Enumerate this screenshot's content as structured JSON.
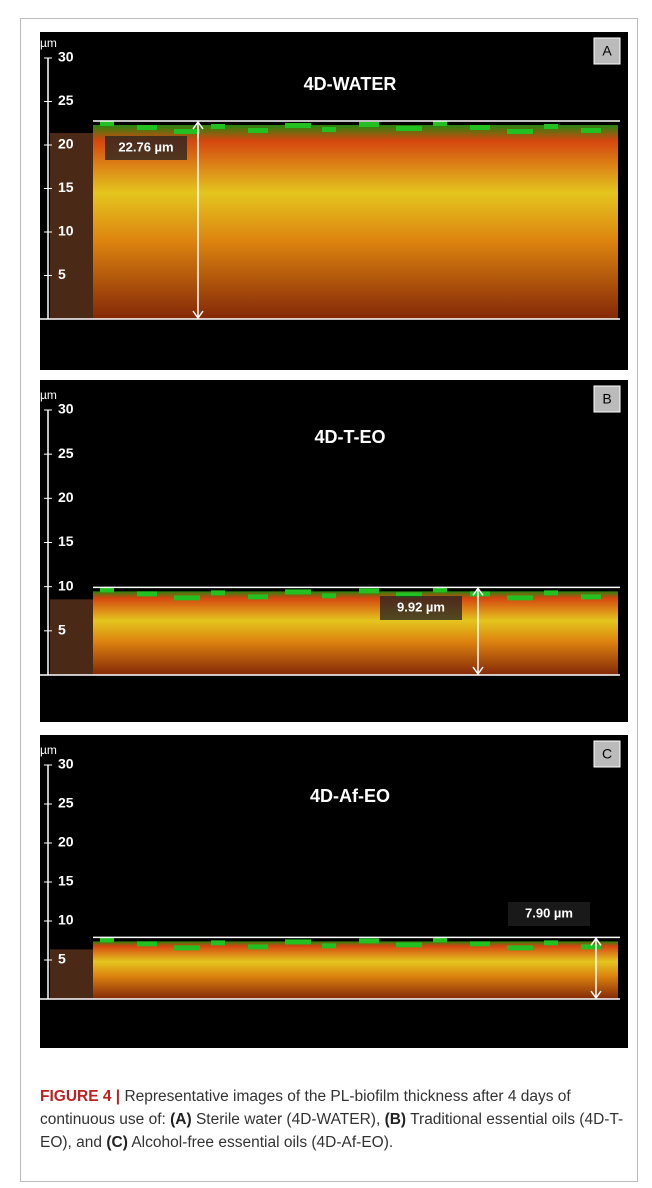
{
  "panels": [
    {
      "letter": "A",
      "title": "4D-WATER",
      "unit": "µm",
      "ticks": [
        30,
        25,
        20,
        15,
        10,
        5
      ],
      "thickness_label": "22.76 µm"
    },
    {
      "letter": "B",
      "title": "4D-T-EO",
      "unit": "µm",
      "ticks": [
        30,
        25,
        20,
        15,
        10,
        5
      ],
      "thickness_label": "9.92 µm"
    },
    {
      "letter": "C",
      "title": "4D-Af-EO",
      "unit": "µm",
      "ticks": [
        30,
        25,
        20,
        15,
        10,
        5
      ],
      "thickness_label": "7.90 µm"
    }
  ],
  "caption": [
    {
      "text": "FIGURE 4 |",
      "bold": true
    },
    {
      "text": " Representative images of the PL-biofilm thickness after 4 days of continuous use of: ",
      "bold": false
    },
    {
      "text": "(A)",
      "bold": true
    },
    {
      "text": " Sterile water (4D-WATER), ",
      "bold": false
    },
    {
      "text": "(B)",
      "bold": true
    },
    {
      "text": " Traditional essential oils (4D-T-EO), and ",
      "bold": false
    },
    {
      "text": "(C)",
      "bold": true
    },
    {
      "text": " Alcohol-free essential oils (4D-Af-EO).",
      "bold": false
    }
  ]
}
